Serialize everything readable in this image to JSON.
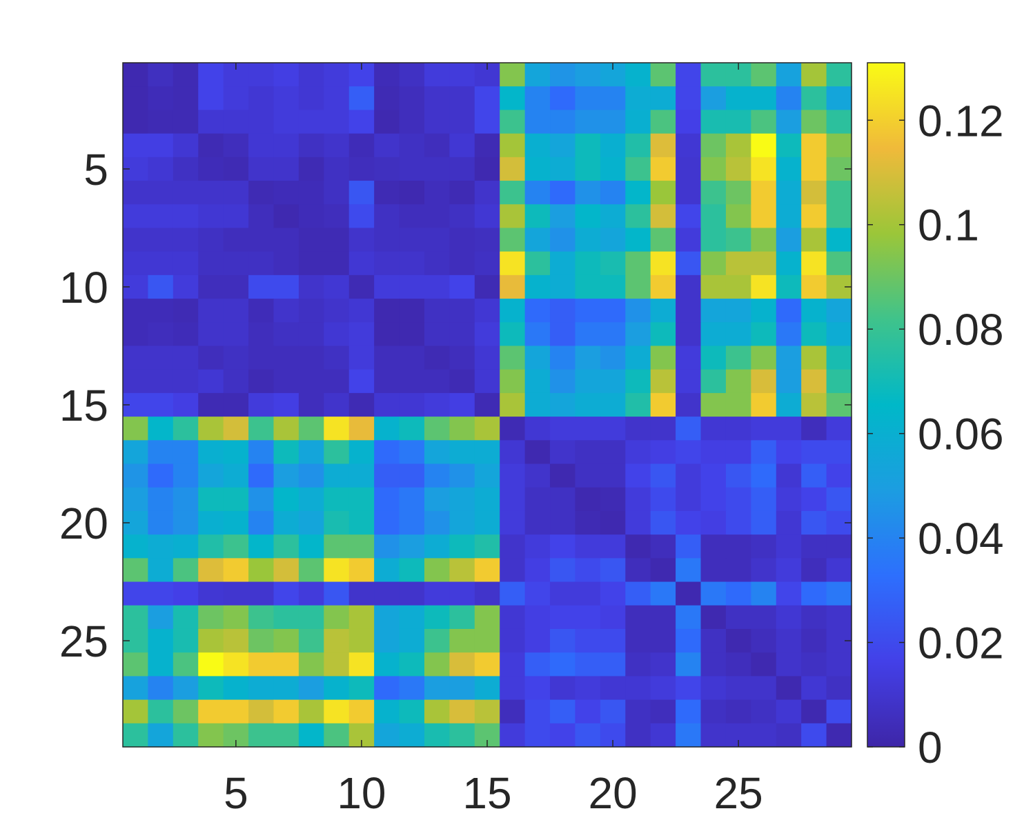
{
  "chart_data": {
    "type": "heatmap",
    "title": "",
    "xlabel": "",
    "ylabel": "",
    "rows": 29,
    "cols": 29,
    "x_ticks": [
      5,
      10,
      15,
      20,
      25
    ],
    "y_ticks": [
      5,
      10,
      15,
      20,
      25
    ],
    "colorbar": {
      "colormap": "parula",
      "min": 0,
      "max": 0.131,
      "ticks": [
        0,
        0.02,
        0.04,
        0.06,
        0.08,
        0.1,
        0.12
      ],
      "tick_labels": [
        "0",
        "0.02",
        "0.04",
        "0.06",
        "0.08",
        "0.1",
        "0.12"
      ]
    },
    "group_boundary_after_index": 15,
    "block_pattern_levels": {
      "within_group_1": 0.008,
      "within_group_2": 0.012,
      "between_groups": 0.07
    },
    "values": [
      [
        0.002,
        0.006,
        0.003,
        0.017,
        0.013,
        0.013,
        0.015,
        0.011,
        0.013,
        0.017,
        0.004,
        0.007,
        0.013,
        0.013,
        0.011,
        0.094,
        0.054,
        0.046,
        0.05,
        0.054,
        0.062,
        0.087,
        0.018,
        0.077,
        0.077,
        0.087,
        0.052,
        0.1,
        0.077
      ],
      [
        0.002,
        0.004,
        0.003,
        0.017,
        0.013,
        0.011,
        0.013,
        0.011,
        0.013,
        0.027,
        0.003,
        0.005,
        0.009,
        0.009,
        0.018,
        0.064,
        0.04,
        0.031,
        0.04,
        0.04,
        0.058,
        0.058,
        0.018,
        0.05,
        0.062,
        0.062,
        0.04,
        0.077,
        0.054
      ],
      [
        0.002,
        0.003,
        0.003,
        0.011,
        0.011,
        0.011,
        0.013,
        0.013,
        0.013,
        0.017,
        0.002,
        0.005,
        0.009,
        0.009,
        0.018,
        0.081,
        0.04,
        0.04,
        0.045,
        0.045,
        0.06,
        0.084,
        0.016,
        0.072,
        0.072,
        0.084,
        0.05,
        0.09,
        0.077
      ],
      [
        0.015,
        0.015,
        0.011,
        0.003,
        0.005,
        0.011,
        0.011,
        0.007,
        0.009,
        0.004,
        0.009,
        0.007,
        0.005,
        0.011,
        0.003,
        0.1,
        0.06,
        0.054,
        0.069,
        0.06,
        0.074,
        0.111,
        0.011,
        0.09,
        0.101,
        0.131,
        0.069,
        0.119,
        0.094
      ],
      [
        0.013,
        0.011,
        0.007,
        0.004,
        0.003,
        0.009,
        0.009,
        0.003,
        0.007,
        0.005,
        0.006,
        0.007,
        0.007,
        0.007,
        0.002,
        0.109,
        0.062,
        0.058,
        0.069,
        0.062,
        0.081,
        0.119,
        0.01,
        0.094,
        0.104,
        0.125,
        0.062,
        0.119,
        0.09
      ],
      [
        0.009,
        0.009,
        0.009,
        0.009,
        0.009,
        0.003,
        0.004,
        0.004,
        0.007,
        0.024,
        0.003,
        0.002,
        0.005,
        0.003,
        0.009,
        0.081,
        0.04,
        0.031,
        0.045,
        0.04,
        0.064,
        0.098,
        0.01,
        0.081,
        0.09,
        0.119,
        0.058,
        0.109,
        0.081
      ],
      [
        0.013,
        0.013,
        0.013,
        0.011,
        0.011,
        0.005,
        0.002,
        0.004,
        0.005,
        0.02,
        0.007,
        0.005,
        0.005,
        0.007,
        0.011,
        0.101,
        0.069,
        0.05,
        0.064,
        0.058,
        0.077,
        0.109,
        0.018,
        0.077,
        0.094,
        0.119,
        0.058,
        0.119,
        0.081
      ],
      [
        0.009,
        0.009,
        0.009,
        0.007,
        0.005,
        0.005,
        0.005,
        0.003,
        0.003,
        0.009,
        0.007,
        0.007,
        0.007,
        0.005,
        0.006,
        0.087,
        0.054,
        0.045,
        0.058,
        0.054,
        0.064,
        0.087,
        0.013,
        0.077,
        0.081,
        0.094,
        0.05,
        0.101,
        0.064
      ],
      [
        0.011,
        0.011,
        0.011,
        0.007,
        0.007,
        0.007,
        0.005,
        0.003,
        0.003,
        0.011,
        0.009,
        0.009,
        0.007,
        0.005,
        0.007,
        0.125,
        0.077,
        0.058,
        0.069,
        0.072,
        0.087,
        0.125,
        0.024,
        0.094,
        0.104,
        0.104,
        0.062,
        0.125,
        0.084
      ],
      [
        0.013,
        0.024,
        0.013,
        0.005,
        0.005,
        0.02,
        0.02,
        0.009,
        0.011,
        0.003,
        0.013,
        0.013,
        0.013,
        0.017,
        0.003,
        0.113,
        0.062,
        0.058,
        0.069,
        0.069,
        0.087,
        0.119,
        0.009,
        0.101,
        0.101,
        0.125,
        0.069,
        0.119,
        0.101
      ],
      [
        0.004,
        0.004,
        0.003,
        0.009,
        0.009,
        0.004,
        0.009,
        0.007,
        0.009,
        0.011,
        0.002,
        0.002,
        0.007,
        0.007,
        0.011,
        0.062,
        0.031,
        0.027,
        0.031,
        0.031,
        0.045,
        0.058,
        0.009,
        0.054,
        0.054,
        0.062,
        0.031,
        0.062,
        0.054
      ],
      [
        0.004,
        0.005,
        0.004,
        0.009,
        0.009,
        0.005,
        0.007,
        0.007,
        0.011,
        0.013,
        0.002,
        0.002,
        0.007,
        0.007,
        0.013,
        0.069,
        0.036,
        0.027,
        0.036,
        0.036,
        0.05,
        0.069,
        0.009,
        0.058,
        0.058,
        0.069,
        0.036,
        0.069,
        0.058
      ],
      [
        0.009,
        0.009,
        0.009,
        0.005,
        0.007,
        0.005,
        0.005,
        0.005,
        0.007,
        0.013,
        0.005,
        0.005,
        0.003,
        0.005,
        0.011,
        0.087,
        0.054,
        0.04,
        0.05,
        0.045,
        0.058,
        0.094,
        0.013,
        0.069,
        0.081,
        0.094,
        0.05,
        0.101,
        0.072
      ],
      [
        0.009,
        0.009,
        0.009,
        0.011,
        0.007,
        0.003,
        0.005,
        0.005,
        0.005,
        0.017,
        0.005,
        0.005,
        0.005,
        0.003,
        0.011,
        0.094,
        0.058,
        0.045,
        0.054,
        0.054,
        0.069,
        0.104,
        0.013,
        0.077,
        0.094,
        0.11,
        0.05,
        0.11,
        0.077
      ],
      [
        0.018,
        0.018,
        0.015,
        0.003,
        0.003,
        0.013,
        0.015,
        0.005,
        0.009,
        0.003,
        0.011,
        0.011,
        0.013,
        0.015,
        0.003,
        0.101,
        0.058,
        0.054,
        0.058,
        0.058,
        0.074,
        0.119,
        0.009,
        0.094,
        0.094,
        0.119,
        0.058,
        0.104,
        0.087
      ],
      [
        0.094,
        0.064,
        0.077,
        0.101,
        0.109,
        0.081,
        0.101,
        0.087,
        0.125,
        0.113,
        0.062,
        0.069,
        0.087,
        0.094,
        0.101,
        0.003,
        0.011,
        0.013,
        0.013,
        0.013,
        0.009,
        0.009,
        0.027,
        0.011,
        0.011,
        0.013,
        0.013,
        0.005,
        0.013
      ],
      [
        0.054,
        0.04,
        0.04,
        0.06,
        0.062,
        0.04,
        0.069,
        0.054,
        0.077,
        0.062,
        0.031,
        0.036,
        0.054,
        0.058,
        0.058,
        0.011,
        0.002,
        0.009,
        0.007,
        0.007,
        0.013,
        0.015,
        0.018,
        0.015,
        0.015,
        0.027,
        0.017,
        0.02,
        0.02
      ],
      [
        0.046,
        0.031,
        0.04,
        0.054,
        0.058,
        0.031,
        0.05,
        0.045,
        0.058,
        0.058,
        0.027,
        0.027,
        0.04,
        0.045,
        0.054,
        0.013,
        0.009,
        0.002,
        0.007,
        0.007,
        0.017,
        0.024,
        0.013,
        0.017,
        0.024,
        0.031,
        0.011,
        0.027,
        0.017
      ],
      [
        0.05,
        0.04,
        0.045,
        0.069,
        0.069,
        0.045,
        0.064,
        0.058,
        0.069,
        0.069,
        0.031,
        0.036,
        0.05,
        0.054,
        0.058,
        0.013,
        0.007,
        0.007,
        0.002,
        0.003,
        0.013,
        0.02,
        0.013,
        0.017,
        0.02,
        0.027,
        0.013,
        0.017,
        0.024
      ],
      [
        0.054,
        0.04,
        0.045,
        0.06,
        0.062,
        0.04,
        0.058,
        0.054,
        0.072,
        0.069,
        0.031,
        0.036,
        0.045,
        0.054,
        0.058,
        0.013,
        0.007,
        0.007,
        0.003,
        0.002,
        0.013,
        0.024,
        0.017,
        0.015,
        0.02,
        0.027,
        0.011,
        0.024,
        0.02
      ],
      [
        0.062,
        0.058,
        0.06,
        0.074,
        0.081,
        0.064,
        0.077,
        0.064,
        0.087,
        0.087,
        0.045,
        0.05,
        0.058,
        0.069,
        0.074,
        0.009,
        0.013,
        0.017,
        0.013,
        0.013,
        0.002,
        0.005,
        0.027,
        0.005,
        0.005,
        0.007,
        0.011,
        0.007,
        0.007
      ],
      [
        0.087,
        0.058,
        0.084,
        0.111,
        0.119,
        0.098,
        0.109,
        0.087,
        0.125,
        0.119,
        0.058,
        0.069,
        0.094,
        0.104,
        0.119,
        0.009,
        0.015,
        0.024,
        0.02,
        0.024,
        0.005,
        0.002,
        0.036,
        0.005,
        0.005,
        0.009,
        0.013,
        0.005,
        0.011
      ],
      [
        0.018,
        0.018,
        0.016,
        0.011,
        0.01,
        0.01,
        0.018,
        0.013,
        0.024,
        0.009,
        0.009,
        0.009,
        0.013,
        0.013,
        0.009,
        0.027,
        0.018,
        0.013,
        0.013,
        0.017,
        0.027,
        0.036,
        0.002,
        0.036,
        0.031,
        0.04,
        0.018,
        0.031,
        0.036
      ],
      [
        0.077,
        0.05,
        0.072,
        0.09,
        0.094,
        0.081,
        0.077,
        0.077,
        0.094,
        0.101,
        0.054,
        0.058,
        0.069,
        0.077,
        0.094,
        0.011,
        0.015,
        0.017,
        0.017,
        0.015,
        0.005,
        0.005,
        0.036,
        0.002,
        0.007,
        0.007,
        0.011,
        0.007,
        0.009
      ],
      [
        0.077,
        0.062,
        0.072,
        0.101,
        0.104,
        0.09,
        0.094,
        0.081,
        0.104,
        0.101,
        0.054,
        0.058,
        0.081,
        0.094,
        0.094,
        0.011,
        0.015,
        0.024,
        0.02,
        0.02,
        0.005,
        0.005,
        0.031,
        0.007,
        0.002,
        0.005,
        0.009,
        0.005,
        0.009
      ],
      [
        0.087,
        0.062,
        0.084,
        0.131,
        0.125,
        0.119,
        0.119,
        0.094,
        0.104,
        0.125,
        0.062,
        0.069,
        0.094,
        0.11,
        0.119,
        0.013,
        0.027,
        0.031,
        0.027,
        0.027,
        0.007,
        0.009,
        0.04,
        0.007,
        0.005,
        0.002,
        0.009,
        0.007,
        0.009
      ],
      [
        0.052,
        0.04,
        0.05,
        0.069,
        0.062,
        0.058,
        0.058,
        0.05,
        0.062,
        0.069,
        0.031,
        0.036,
        0.05,
        0.05,
        0.058,
        0.013,
        0.017,
        0.011,
        0.013,
        0.011,
        0.011,
        0.013,
        0.018,
        0.011,
        0.009,
        0.009,
        0.002,
        0.011,
        0.007
      ],
      [
        0.1,
        0.077,
        0.09,
        0.119,
        0.119,
        0.109,
        0.119,
        0.101,
        0.125,
        0.119,
        0.062,
        0.069,
        0.101,
        0.11,
        0.104,
        0.005,
        0.02,
        0.027,
        0.017,
        0.024,
        0.007,
        0.005,
        0.031,
        0.007,
        0.005,
        0.007,
        0.011,
        0.002,
        0.02
      ],
      [
        0.077,
        0.054,
        0.077,
        0.094,
        0.09,
        0.081,
        0.081,
        0.064,
        0.084,
        0.101,
        0.054,
        0.058,
        0.072,
        0.077,
        0.087,
        0.013,
        0.02,
        0.017,
        0.024,
        0.02,
        0.007,
        0.011,
        0.036,
        0.009,
        0.009,
        0.009,
        0.007,
        0.02,
        0.002
      ]
    ]
  }
}
